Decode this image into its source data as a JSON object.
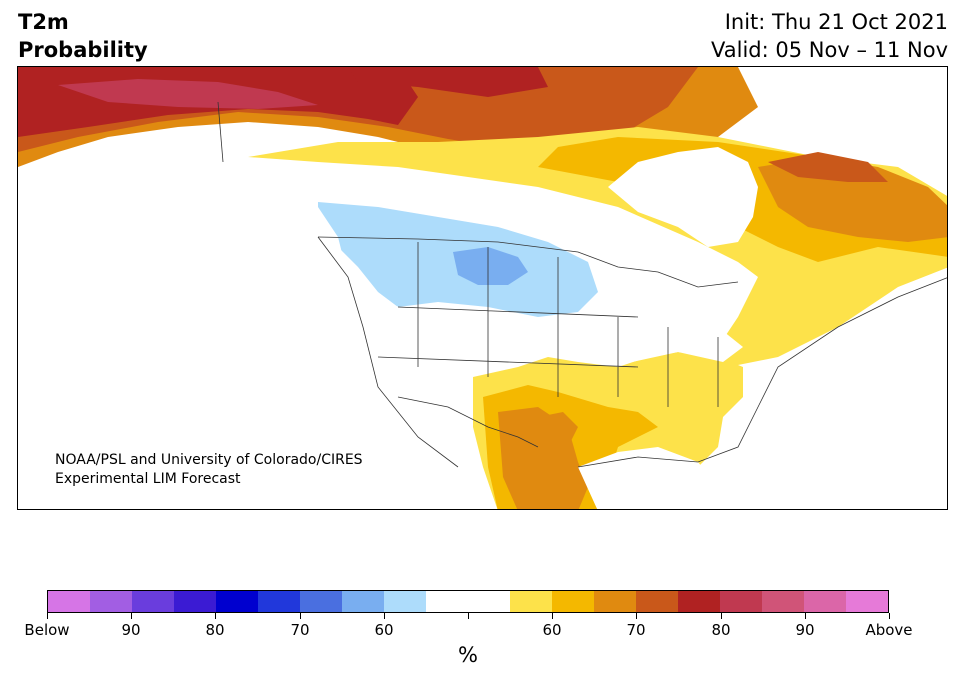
{
  "title": {
    "line1": "T2m",
    "line2": "Probability",
    "init": "Init: Thu 21 Oct 2021",
    "valid": "Valid: 05 Nov – 11 Nov"
  },
  "credit": {
    "line1": "NOAA/PSL and University of Colorado/CIRES",
    "line2": "Experimental LIM Forecast"
  },
  "colorbar": {
    "colors": [
      "#d675e6",
      "#a25ee3",
      "#6a3ddd",
      "#3b1bd3",
      "#0000cf",
      "#2138db",
      "#4a6fe0",
      "#79aef0",
      "#addcfb",
      "#ffffff",
      "#ffffff",
      "#fde24a",
      "#f4b800",
      "#e08a10",
      "#c9581a",
      "#b02222",
      "#c03950",
      "#d05478",
      "#db66a8",
      "#e67ad8"
    ],
    "labels": [
      "Below",
      "90",
      "80",
      "70",
      "60",
      "",
      "60",
      "70",
      "80",
      "90",
      "Above"
    ],
    "unit": "%"
  },
  "legend_colors": {
    "above_60": "#fde24a",
    "above_70": "#f4b800",
    "above_80": "#e08a10",
    "above_90": "#c9581a",
    "above_higher": "#b02222",
    "above_top": "#c03950",
    "below_60": "#addcfb",
    "below_70": "#79aef0"
  }
}
